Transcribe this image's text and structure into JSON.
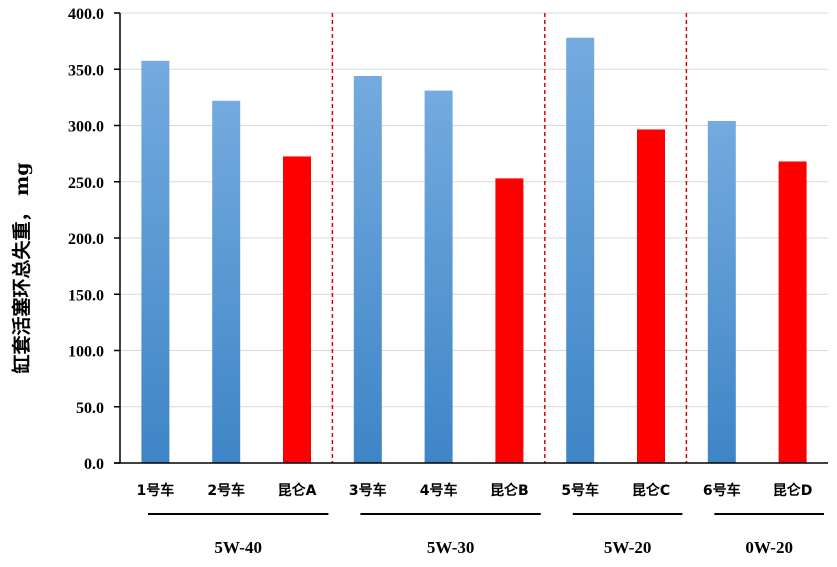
{
  "chart_data": {
    "type": "bar",
    "ylabel": "缸套活塞环总失重， mg",
    "ylim": [
      0,
      400
    ],
    "ytick_step": 50,
    "ytick_labels": [
      "0.0",
      "50.0",
      "100.0",
      "150.0",
      "200.0",
      "250.0",
      "300.0",
      "350.0",
      "400.0"
    ],
    "grid": true,
    "categories": [
      "1号车",
      "2号车",
      "昆仑A",
      "3号车",
      "4号车",
      "昆仑B",
      "5号车",
      "昆仑C",
      "6号车",
      "昆仑D"
    ],
    "values": [
      357.5,
      322.0,
      272.5,
      344.0,
      331.0,
      253.0,
      378.0,
      296.5,
      304.0,
      268.0
    ],
    "bar_colors": [
      "blue",
      "blue",
      "red",
      "blue",
      "blue",
      "red",
      "blue",
      "red",
      "blue",
      "red"
    ],
    "groups": [
      {
        "label": "5W-40",
        "members": [
          0,
          1,
          2
        ]
      },
      {
        "label": "5W-30",
        "members": [
          3,
          4,
          5
        ]
      },
      {
        "label": "5W-20",
        "members": [
          6,
          7
        ]
      },
      {
        "label": "0W-20",
        "members": [
          8,
          9
        ]
      }
    ],
    "group_dividers_after": [
      2,
      5,
      7
    ],
    "colors": {
      "blue_top": "#74aadf",
      "blue_bottom": "#3e85c7",
      "red": "#ff0000",
      "divider": "#e00000",
      "grid": "#d9d9d9"
    }
  }
}
